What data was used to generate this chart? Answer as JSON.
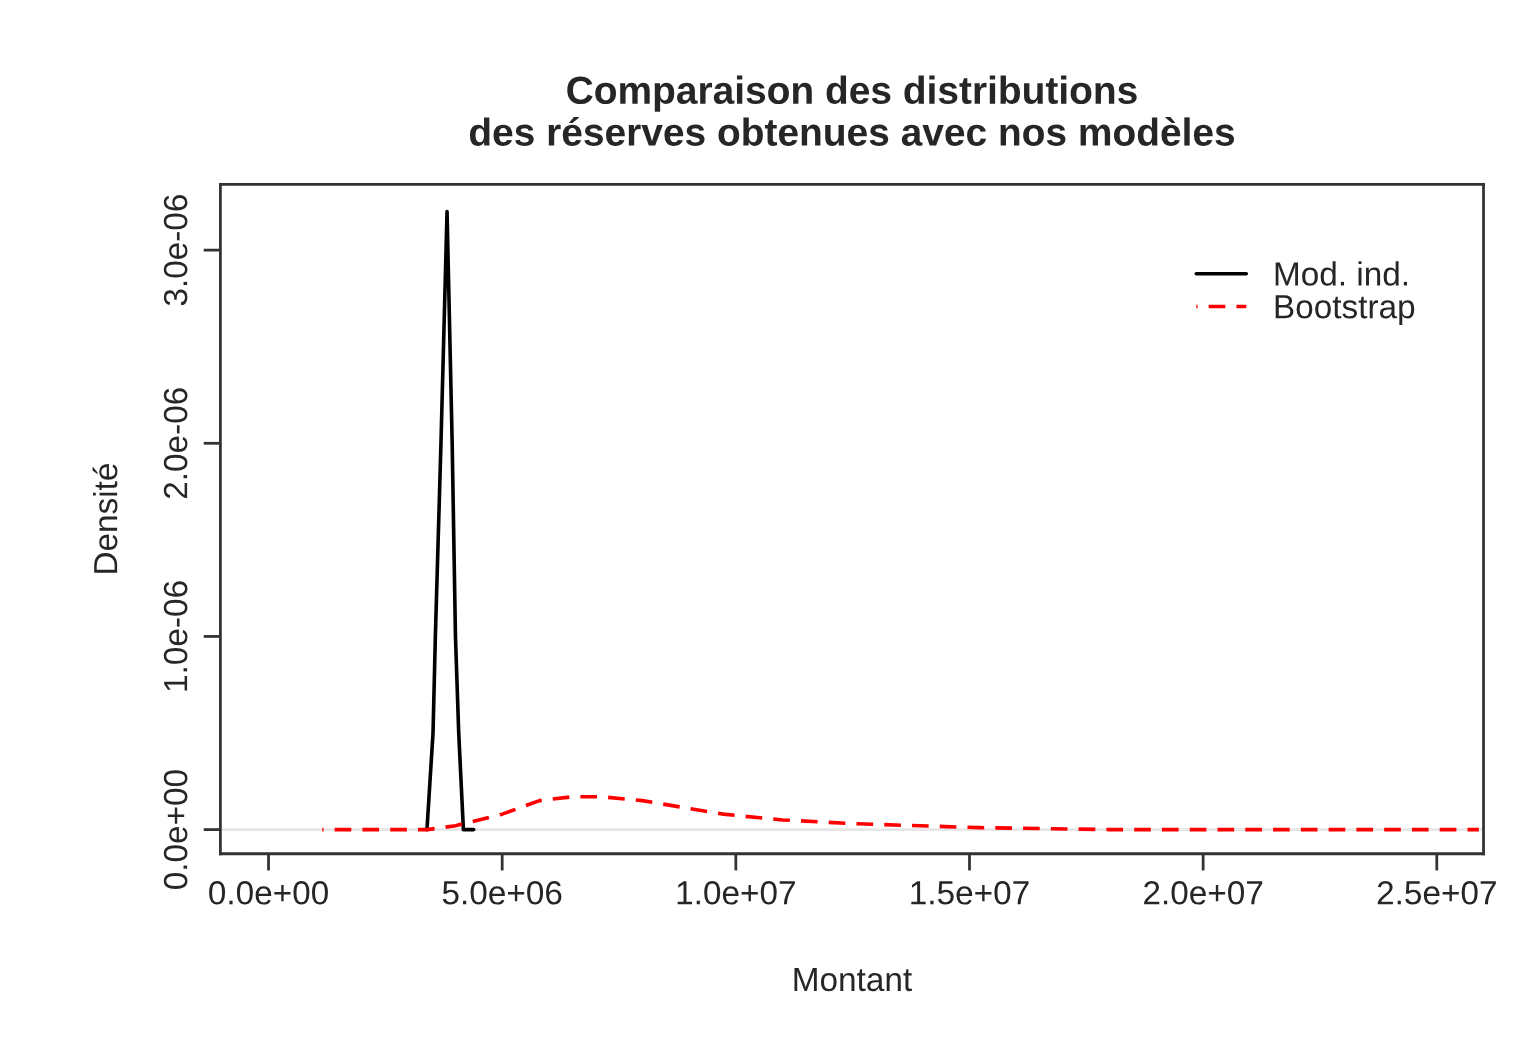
{
  "chart_data": {
    "type": "line",
    "title": "Comparaison des distributions\ndes réserves obtenues avec nos modèles",
    "xlabel": "Montant",
    "ylabel": "Densité",
    "xlim": [
      -1030000,
      26000000
    ],
    "ylim": [
      -1.25e-07,
      3.34e-06
    ],
    "xticks": [
      {
        "value": 0,
        "label": "0.0e+00"
      },
      {
        "value": 5000000,
        "label": "5.0e+06"
      },
      {
        "value": 10000000,
        "label": "1.0e+07"
      },
      {
        "value": 15000000,
        "label": "1.5e+07"
      },
      {
        "value": 20000000,
        "label": "2.0e+07"
      },
      {
        "value": 25000000,
        "label": "2.5e+07"
      }
    ],
    "yticks": [
      {
        "value": 0,
        "label": "0.0e+00"
      },
      {
        "value": 1e-06,
        "label": "1.0e-06"
      },
      {
        "value": 2e-06,
        "label": "2.0e-06"
      },
      {
        "value": 3e-06,
        "label": "3.0e-06"
      }
    ],
    "grid": false,
    "legend": "top right",
    "ref_lines": [
      {
        "axis": "y",
        "value": 0,
        "color": "#e6e6e6",
        "line_style": "solid"
      }
    ],
    "series": [
      {
        "name": "Mod. ind.",
        "color": "#000000",
        "line_style": "solid",
        "x": [
          3390000,
          3520000,
          3570000,
          3690000,
          3820000,
          3930000,
          4000000,
          4070000,
          4170000,
          4390000
        ],
        "values": [
          0,
          5e-07,
          1e-06,
          2e-06,
          3.2e-06,
          2e-06,
          1e-06,
          5e-07,
          0,
          0
        ]
      },
      {
        "name": "Bootstrap",
        "color": "#ff0000",
        "line_style": "dashed",
        "x": [
          1150000,
          2500000,
          3400000,
          4000000,
          5000000,
          5800000,
          6500000,
          7140000,
          8000000,
          9730000,
          11000000,
          12600000,
          15200000,
          18000000,
          22000000,
          25900000
        ],
        "values": [
          0,
          0,
          0,
          2e-08,
          8e-08,
          1.5e-07,
          1.7e-07,
          1.7e-07,
          1.5e-07,
          8e-08,
          5e-08,
          3e-08,
          1e-08,
          0,
          0,
          0
        ]
      }
    ]
  }
}
